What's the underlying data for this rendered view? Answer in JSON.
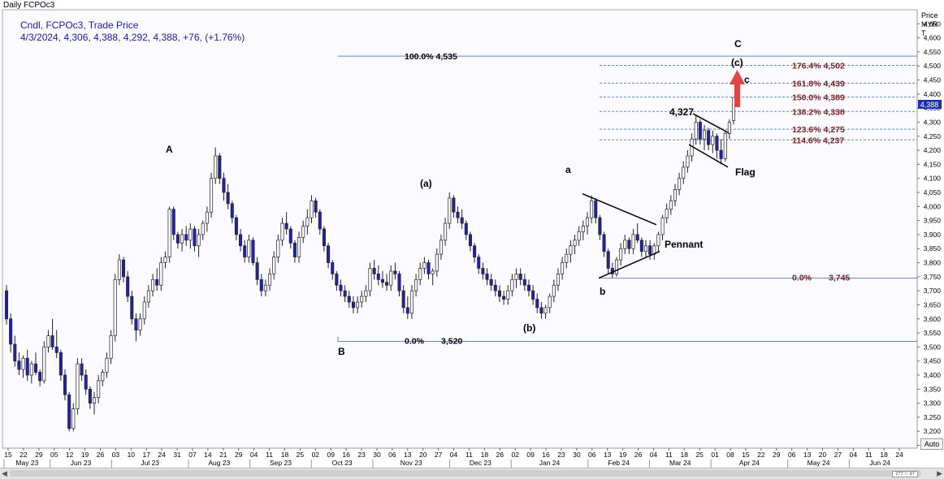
{
  "window_title": "Daily FCPOc3",
  "legend": {
    "line1": "Cndl, FCPOc3, Trade Price",
    "line2": "4/3/2024, 4,306, 4,388, 4,292, 4,388, +76, (+1.76%)"
  },
  "price_axis": {
    "label_lines": [
      "Price",
      "MYR",
      "T"
    ],
    "current_price_label": "4,388"
  },
  "auto_button_label": "Auto",
  "scrollbar": {
    "left_arrow": "◀",
    "right_arrow": "▶",
    "grip_label": "277 ⁝⁝⁝ 97"
  },
  "colors": {
    "up_candle": "#ffffff",
    "down_candle": "#2222aa",
    "fib_line": "#6688bb",
    "fib_text": "#7a1f1f",
    "legend_text": "#1a1aa0",
    "arrow": "#e04444"
  },
  "chart_data": {
    "type": "candlestick",
    "title": "Daily FCPOc3",
    "ylabel": "Price MYR",
    "ylim": [
      3140,
      4700
    ],
    "yticks": [
      3150,
      3200,
      3250,
      3300,
      3350,
      3400,
      3450,
      3500,
      3550,
      3600,
      3650,
      3700,
      3750,
      3800,
      3850,
      3900,
      3950,
      4000,
      4050,
      4100,
      4150,
      4200,
      4250,
      4300,
      4350,
      4400,
      4450,
      4500,
      4550,
      4600,
      4650
    ],
    "day_labels": [
      "15",
      "22",
      "29",
      "05",
      "12",
      "19",
      "26",
      "03",
      "10",
      "17",
      "24",
      "31",
      "07",
      "14",
      "21",
      "29",
      "04",
      "11",
      "18",
      "25",
      "02",
      "09",
      "16",
      "23",
      "30",
      "06",
      "13",
      "20",
      "27",
      "04",
      "11",
      "18",
      "26",
      "02",
      "09",
      "16",
      "23",
      "30",
      "06",
      "13",
      "19",
      "26",
      "04",
      "11",
      "18",
      "25",
      "01",
      "08",
      "15",
      "22",
      "29",
      "06",
      "13",
      "20",
      "27",
      "04",
      "11",
      "18",
      "24"
    ],
    "month_labels": [
      "May 23",
      "Jun 23",
      "Jul 23",
      "Aug 23",
      "Sep 23",
      "Oct 23",
      "Nov 23",
      "Dec 23",
      "Jan 24",
      "Feb 24",
      "Mar 24",
      "Apr 24",
      "May 24",
      "Jun 24"
    ],
    "candles": [
      [
        3700,
        3720,
        3580,
        3600
      ],
      [
        3600,
        3620,
        3480,
        3510
      ],
      [
        3510,
        3540,
        3430,
        3450
      ],
      [
        3450,
        3480,
        3400,
        3420
      ],
      [
        3420,
        3470,
        3390,
        3460
      ],
      [
        3460,
        3490,
        3380,
        3400
      ],
      [
        3400,
        3450,
        3370,
        3440
      ],
      [
        3440,
        3480,
        3400,
        3410
      ],
      [
        3410,
        3420,
        3360,
        3380
      ],
      [
        3380,
        3520,
        3370,
        3500
      ],
      [
        3500,
        3560,
        3480,
        3540
      ],
      [
        3540,
        3600,
        3490,
        3500
      ],
      [
        3500,
        3560,
        3460,
        3480
      ],
      [
        3480,
        3490,
        3380,
        3400
      ],
      [
        3400,
        3420,
        3310,
        3330
      ],
      [
        3330,
        3340,
        3200,
        3210
      ],
      [
        3210,
        3300,
        3200,
        3280
      ],
      [
        3280,
        3460,
        3260,
        3440
      ],
      [
        3440,
        3460,
        3380,
        3400
      ],
      [
        3400,
        3420,
        3330,
        3350
      ],
      [
        3350,
        3360,
        3280,
        3300
      ],
      [
        3300,
        3340,
        3260,
        3320
      ],
      [
        3320,
        3400,
        3300,
        3380
      ],
      [
        3380,
        3420,
        3360,
        3410
      ],
      [
        3410,
        3480,
        3390,
        3460
      ],
      [
        3460,
        3560,
        3440,
        3540
      ],
      [
        3540,
        3760,
        3520,
        3740
      ],
      [
        3740,
        3830,
        3720,
        3810
      ],
      [
        3810,
        3820,
        3730,
        3750
      ],
      [
        3750,
        3770,
        3660,
        3680
      ],
      [
        3680,
        3700,
        3580,
        3600
      ],
      [
        3600,
        3620,
        3520,
        3560
      ],
      [
        3560,
        3620,
        3540,
        3600
      ],
      [
        3600,
        3680,
        3580,
        3660
      ],
      [
        3660,
        3720,
        3640,
        3700
      ],
      [
        3700,
        3760,
        3680,
        3740
      ],
      [
        3740,
        3780,
        3700,
        3720
      ],
      [
        3720,
        3820,
        3700,
        3800
      ],
      [
        3800,
        3840,
        3780,
        3820
      ],
      [
        3820,
        4000,
        3800,
        3990
      ],
      [
        3990,
        4000,
        3880,
        3900
      ],
      [
        3900,
        3910,
        3850,
        3870
      ],
      [
        3870,
        3920,
        3840,
        3900
      ],
      [
        3900,
        3930,
        3860,
        3880
      ],
      [
        3880,
        3940,
        3850,
        3920
      ],
      [
        3920,
        3930,
        3840,
        3860
      ],
      [
        3860,
        3920,
        3820,
        3900
      ],
      [
        3900,
        3950,
        3880,
        3940
      ],
      [
        3940,
        4000,
        3910,
        3980
      ],
      [
        3980,
        4120,
        3960,
        4100
      ],
      [
        4100,
        4210,
        4080,
        4180
      ],
      [
        4180,
        4190,
        4080,
        4100
      ],
      [
        4100,
        4120,
        4020,
        4050
      ],
      [
        4050,
        4080,
        3990,
        4010
      ],
      [
        4010,
        4020,
        3940,
        3960
      ],
      [
        3960,
        3970,
        3880,
        3900
      ],
      [
        3900,
        3920,
        3840,
        3860
      ],
      [
        3860,
        3880,
        3800,
        3820
      ],
      [
        3820,
        3900,
        3800,
        3880
      ],
      [
        3880,
        3890,
        3790,
        3800
      ],
      [
        3800,
        3820,
        3720,
        3740
      ],
      [
        3740,
        3760,
        3680,
        3700
      ],
      [
        3700,
        3740,
        3680,
        3720
      ],
      [
        3720,
        3780,
        3700,
        3760
      ],
      [
        3760,
        3840,
        3740,
        3820
      ],
      [
        3820,
        3900,
        3800,
        3880
      ],
      [
        3880,
        3960,
        3860,
        3940
      ],
      [
        3940,
        3980,
        3900,
        3920
      ],
      [
        3920,
        3930,
        3850,
        3870
      ],
      [
        3870,
        3880,
        3800,
        3820
      ],
      [
        3820,
        3910,
        3800,
        3890
      ],
      [
        3890,
        3950,
        3870,
        3930
      ],
      [
        3930,
        3990,
        3900,
        3960
      ],
      [
        3960,
        4040,
        3940,
        4020
      ],
      [
        4020,
        4030,
        3960,
        3980
      ],
      [
        3980,
        3990,
        3900,
        3920
      ],
      [
        3920,
        3930,
        3840,
        3860
      ],
      [
        3860,
        3870,
        3780,
        3800
      ],
      [
        3800,
        3810,
        3740,
        3760
      ],
      [
        3760,
        3770,
        3700,
        3720
      ],
      [
        3720,
        3740,
        3680,
        3700
      ],
      [
        3700,
        3720,
        3660,
        3680
      ],
      [
        3680,
        3700,
        3640,
        3660
      ],
      [
        3660,
        3680,
        3620,
        3640
      ],
      [
        3640,
        3680,
        3620,
        3660
      ],
      [
        3660,
        3700,
        3640,
        3680
      ],
      [
        3680,
        3720,
        3660,
        3700
      ],
      [
        3700,
        3800,
        3680,
        3780
      ],
      [
        3780,
        3810,
        3740,
        3760
      ],
      [
        3760,
        3790,
        3720,
        3740
      ],
      [
        3740,
        3770,
        3710,
        3730
      ],
      [
        3730,
        3760,
        3700,
        3720
      ],
      [
        3720,
        3790,
        3700,
        3770
      ],
      [
        3770,
        3800,
        3740,
        3760
      ],
      [
        3760,
        3770,
        3680,
        3700
      ],
      [
        3700,
        3720,
        3620,
        3640
      ],
      [
        3640,
        3680,
        3600,
        3620
      ],
      [
        3620,
        3720,
        3600,
        3700
      ],
      [
        3700,
        3760,
        3680,
        3740
      ],
      [
        3740,
        3800,
        3720,
        3780
      ],
      [
        3780,
        3820,
        3760,
        3800
      ],
      [
        3800,
        3810,
        3740,
        3760
      ],
      [
        3760,
        3780,
        3720,
        3770
      ],
      [
        3770,
        3850,
        3750,
        3830
      ],
      [
        3830,
        3900,
        3810,
        3880
      ],
      [
        3880,
        3960,
        3860,
        3940
      ],
      [
        3940,
        4050,
        3920,
        4030
      ],
      [
        4030,
        4040,
        3960,
        3980
      ],
      [
        3980,
        4000,
        3940,
        3960
      ],
      [
        3960,
        3990,
        3920,
        3940
      ],
      [
        3940,
        3950,
        3880,
        3900
      ],
      [
        3900,
        3910,
        3840,
        3860
      ],
      [
        3860,
        3870,
        3800,
        3820
      ],
      [
        3820,
        3830,
        3760,
        3780
      ],
      [
        3780,
        3800,
        3740,
        3760
      ],
      [
        3760,
        3780,
        3720,
        3740
      ],
      [
        3740,
        3760,
        3700,
        3720
      ],
      [
        3720,
        3740,
        3680,
        3700
      ],
      [
        3700,
        3720,
        3660,
        3680
      ],
      [
        3680,
        3700,
        3650,
        3670
      ],
      [
        3670,
        3720,
        3650,
        3700
      ],
      [
        3700,
        3760,
        3680,
        3740
      ],
      [
        3740,
        3780,
        3710,
        3760
      ],
      [
        3760,
        3780,
        3720,
        3740
      ],
      [
        3740,
        3760,
        3700,
        3720
      ],
      [
        3720,
        3740,
        3680,
        3700
      ],
      [
        3700,
        3720,
        3650,
        3670
      ],
      [
        3670,
        3690,
        3620,
        3640
      ],
      [
        3640,
        3660,
        3600,
        3620
      ],
      [
        3620,
        3650,
        3600,
        3640
      ],
      [
        3640,
        3690,
        3620,
        3680
      ],
      [
        3680,
        3740,
        3660,
        3720
      ],
      [
        3720,
        3780,
        3700,
        3760
      ],
      [
        3760,
        3820,
        3740,
        3800
      ],
      [
        3800,
        3850,
        3780,
        3830
      ],
      [
        3830,
        3880,
        3800,
        3860
      ],
      [
        3860,
        3900,
        3830,
        3880
      ],
      [
        3880,
        3930,
        3860,
        3910
      ],
      [
        3910,
        3950,
        3880,
        3930
      ],
      [
        3930,
        3980,
        3900,
        3960
      ],
      [
        3960,
        4040,
        3940,
        4020
      ],
      [
        4020,
        4030,
        3940,
        3960
      ],
      [
        3960,
        3970,
        3880,
        3900
      ],
      [
        3900,
        3910,
        3820,
        3840
      ],
      [
        3840,
        3850,
        3760,
        3780
      ],
      [
        3780,
        3800,
        3745,
        3760
      ],
      [
        3760,
        3820,
        3750,
        3810
      ],
      [
        3810,
        3870,
        3790,
        3850
      ],
      [
        3850,
        3900,
        3830,
        3880
      ],
      [
        3880,
        3890,
        3830,
        3850
      ],
      [
        3850,
        3920,
        3830,
        3900
      ],
      [
        3900,
        3940,
        3870,
        3880
      ],
      [
        3880,
        3890,
        3820,
        3840
      ],
      [
        3840,
        3880,
        3820,
        3860
      ],
      [
        3860,
        3880,
        3810,
        3830
      ],
      [
        3830,
        3870,
        3810,
        3860
      ],
      [
        3860,
        3910,
        3840,
        3900
      ],
      [
        3900,
        3970,
        3880,
        3960
      ],
      [
        3960,
        4010,
        3940,
        3990
      ],
      [
        3990,
        4040,
        3970,
        4020
      ],
      [
        4020,
        4080,
        4000,
        4060
      ],
      [
        4060,
        4120,
        4040,
        4100
      ],
      [
        4100,
        4160,
        4080,
        4140
      ],
      [
        4140,
        4200,
        4120,
        4180
      ],
      [
        4180,
        4260,
        4160,
        4240
      ],
      [
        4240,
        4327,
        4220,
        4300
      ],
      [
        4300,
        4310,
        4220,
        4240
      ],
      [
        4240,
        4290,
        4200,
        4270
      ],
      [
        4270,
        4280,
        4200,
        4220
      ],
      [
        4220,
        4270,
        4190,
        4250
      ],
      [
        4250,
        4260,
        4170,
        4200
      ],
      [
        4200,
        4240,
        4150,
        4170
      ],
      [
        4170,
        4270,
        4160,
        4260
      ],
      [
        4260,
        4310,
        4240,
        4300
      ],
      [
        4306,
        4388,
        4292,
        4388
      ]
    ],
    "annotations": {
      "wave_labels": [
        "A",
        "B",
        "(a)",
        "(b)",
        "a",
        "b",
        "C",
        "(c)",
        "c"
      ],
      "pattern_labels": [
        "Pennant",
        "Flag"
      ],
      "price_callouts": [
        "4,327"
      ]
    },
    "fib_retracement_1": {
      "start_label": "0.0%",
      "start_value_label": "3,520",
      "start_value": 3520,
      "end_label": "100.0% 4,535",
      "end_value": 4535
    },
    "fib_extension": {
      "base_label": "0.0%",
      "base_value_label": "3,745",
      "base_value": 3745,
      "levels": [
        {
          "label": "114.6% 4,237",
          "value": 4237
        },
        {
          "label": "123.6% 4,275",
          "value": 4275
        },
        {
          "label": "138.2% 4,338",
          "value": 4338
        },
        {
          "label": "150.0% 4,389",
          "value": 4389
        },
        {
          "label": "161.8% 4,439",
          "value": 4439
        },
        {
          "label": "176.4% 4,502",
          "value": 4502
        }
      ]
    }
  }
}
